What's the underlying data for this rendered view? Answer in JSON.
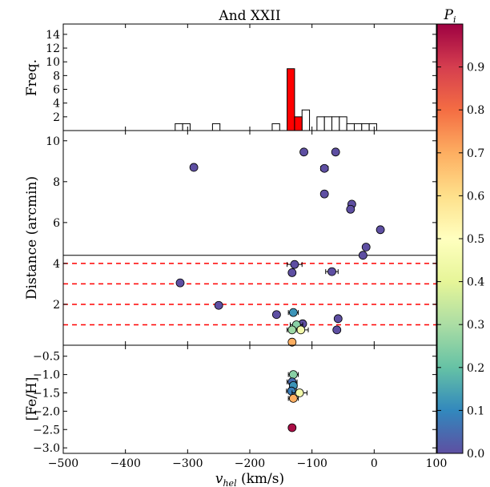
{
  "chart_data": [
    {
      "panel": "histogram",
      "type": "bar",
      "title": "And XXII",
      "xlabel": "",
      "ylabel": "Freq.",
      "xlim": [
        -500,
        100
      ],
      "ylim": [
        0,
        15.5
      ],
      "yticks": [
        2,
        4,
        6,
        8,
        10,
        12,
        14
      ],
      "bin_width": 12,
      "series": [
        {
          "name": "all stars",
          "style": "outline",
          "bins": [
            {
              "x0": -320,
              "count": 1
            },
            {
              "x0": -308,
              "count": 1
            },
            {
              "x0": -260,
              "count": 1
            },
            {
              "x0": -164,
              "count": 1
            },
            {
              "x0": -116,
              "count": 3
            },
            {
              "x0": -92,
              "count": 2
            },
            {
              "x0": -80,
              "count": 2
            },
            {
              "x0": -68,
              "count": 2
            },
            {
              "x0": -56,
              "count": 2
            },
            {
              "x0": -44,
              "count": 1
            },
            {
              "x0": -32,
              "count": 1
            },
            {
              "x0": -20,
              "count": 1
            },
            {
              "x0": -8,
              "count": 1
            }
          ]
        },
        {
          "name": "members",
          "style": "filled",
          "color": "#ff0000",
          "bins": [
            {
              "x0": -140,
              "count": 9
            },
            {
              "x0": -128,
              "count": 2
            }
          ]
        }
      ]
    },
    {
      "panel": "distance",
      "type": "scatter",
      "xlabel": "",
      "ylabel": "Distance (arcmin)",
      "xlim": [
        -500,
        100
      ],
      "ylim": [
        0,
        10.5
      ],
      "yticks": [
        2,
        4,
        6,
        8,
        10
      ],
      "solid_hline": 4.4,
      "dashed_hlines": [
        1.0,
        2.0,
        3.0,
        4.0
      ],
      "points": [
        {
          "x": -290,
          "y": 8.7,
          "p": 0.0
        },
        {
          "x": -113,
          "y": 9.45,
          "p": 0.0
        },
        {
          "x": -62,
          "y": 9.45,
          "p": 0.0
        },
        {
          "x": -80,
          "y": 8.65,
          "p": 0.0,
          "xerr": 6
        },
        {
          "x": -80,
          "y": 7.4,
          "p": 0.0
        },
        {
          "x": -36,
          "y": 6.9,
          "p": 0.0
        },
        {
          "x": -38,
          "y": 6.65,
          "p": 0.0
        },
        {
          "x": 10,
          "y": 5.65,
          "p": 0.0
        },
        {
          "x": -13,
          "y": 4.8,
          "p": 0.0
        },
        {
          "x": -18,
          "y": 4.4,
          "p": 0.0
        },
        {
          "x": -128,
          "y": 3.95,
          "p": 0.0,
          "xerr": 12
        },
        {
          "x": -132,
          "y": 3.55,
          "p": 0.0
        },
        {
          "x": -68,
          "y": 3.6,
          "p": 0.0,
          "xerr": 10
        },
        {
          "x": -312,
          "y": 3.05,
          "p": 0.0
        },
        {
          "x": -250,
          "y": 1.95,
          "p": 0.0
        },
        {
          "x": -130,
          "y": 1.6,
          "p": 0.12,
          "xerr": 8
        },
        {
          "x": -157,
          "y": 1.5,
          "p": 0.0
        },
        {
          "x": -58,
          "y": 1.3,
          "p": 0.0
        },
        {
          "x": -115,
          "y": 1.05,
          "p": 0.0
        },
        {
          "x": -125,
          "y": 1.0,
          "p": 0.25,
          "xerr": 10
        },
        {
          "x": -118,
          "y": 0.75,
          "p": 0.45,
          "xerr": 12
        },
        {
          "x": -132,
          "y": 0.75,
          "p": 0.28,
          "xerr": 8
        },
        {
          "x": -60,
          "y": 0.75,
          "p": 0.0
        },
        {
          "x": -132,
          "y": 0.15,
          "p": 0.7
        }
      ]
    },
    {
      "panel": "metallicity",
      "type": "scatter",
      "xlabel": "v_hel (km/s)",
      "xlabel_base": "v",
      "xlabel_sub": "hel",
      "xlabel_units": " (km/s)",
      "ylabel": "[Fe/H]",
      "xlim": [
        -500,
        100
      ],
      "ylim": [
        -3.15,
        -0.2
      ],
      "xticks": [
        -500,
        -400,
        -300,
        -200,
        -100,
        0,
        100
      ],
      "xtick_labels": [
        "−500",
        "−400",
        "−300",
        "−200",
        "−100",
        "0",
        "100"
      ],
      "yticks": [
        -0.5,
        -1.0,
        -1.5,
        -2.0,
        -2.5,
        -3.0
      ],
      "ytick_labels": [
        "−0.5",
        "−1.0",
        "−1.5",
        "−2.0",
        "−2.5",
        "−3.0"
      ],
      "points": [
        {
          "x": -130,
          "y": -1.0,
          "p": 0.25,
          "xerr": 8
        },
        {
          "x": -132,
          "y": -1.2,
          "p": 0.05,
          "xerr": 8
        },
        {
          "x": -130,
          "y": -1.3,
          "p": 0.12,
          "xerr": 6
        },
        {
          "x": -133,
          "y": -1.45,
          "p": 0.08,
          "xerr": 8
        },
        {
          "x": -120,
          "y": -1.5,
          "p": 0.45,
          "xerr": 12
        },
        {
          "x": -130,
          "y": -1.65,
          "p": 0.7,
          "xerr": 8
        },
        {
          "x": -132,
          "y": -2.45,
          "p": 0.98
        }
      ]
    },
    {
      "panel": "colorbar",
      "type": "colorbar",
      "label": "P_i",
      "label_base": "P",
      "label_sub": "i",
      "range": [
        0,
        1
      ],
      "colormap": "Spectral_r",
      "colors": [
        "#5e4fa2",
        "#3288bd",
        "#66c2a5",
        "#abdda4",
        "#e6f598",
        "#ffffbf",
        "#fee08b",
        "#fdae61",
        "#f46d43",
        "#d53e4f",
        "#9e0142"
      ],
      "ticks": [
        "0.0",
        "0.1",
        "0.2",
        "0.3",
        "0.4",
        "0.5",
        "0.6",
        "0.7",
        "0.8",
        "0.9"
      ]
    }
  ]
}
